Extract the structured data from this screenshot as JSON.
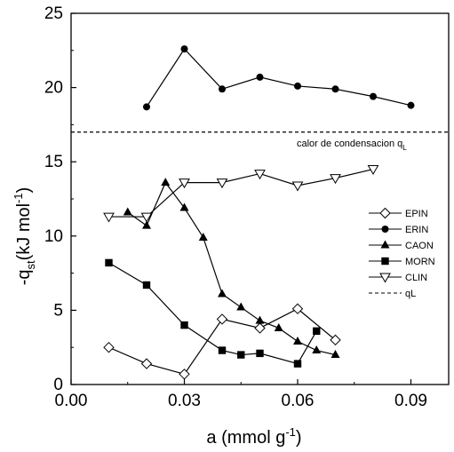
{
  "chart_data": {
    "type": "line",
    "xlabel": "a (mmol g",
    "xlabel_sup": "-1",
    "xlabel_tail": ")",
    "ylabel_prefix": "-q",
    "ylabel_sub": "st",
    "ylabel_mid": "(kJ mol",
    "ylabel_sup": "-1",
    "ylabel_tail": ")",
    "xlim": [
      0.0,
      0.1
    ],
    "ylim": [
      0,
      25
    ],
    "x_ticks": [
      0.0,
      0.03,
      0.06,
      0.09
    ],
    "x_tick_labels": [
      "0.00",
      "0.03",
      "0.06",
      "0.09"
    ],
    "y_ticks": [
      0,
      5,
      10,
      15,
      20,
      25
    ],
    "y_tick_labels": [
      "0",
      "5",
      "10",
      "15",
      "20",
      "25"
    ],
    "grid": false,
    "legend_position": "right",
    "series": [
      {
        "name": "EPIN",
        "marker": "diamond-open",
        "x": [
          0.01,
          0.02,
          0.03,
          0.04,
          0.05,
          0.06,
          0.07
        ],
        "y": [
          2.5,
          1.4,
          0.7,
          4.4,
          3.8,
          5.1,
          3.0
        ]
      },
      {
        "name": "ERIN",
        "marker": "circle-filled",
        "x": [
          0.02,
          0.03,
          0.04,
          0.05,
          0.06,
          0.07,
          0.08,
          0.09
        ],
        "y": [
          18.7,
          22.6,
          19.9,
          20.7,
          20.1,
          19.9,
          19.4,
          18.8
        ]
      },
      {
        "name": "CAON",
        "marker": "triangle-up-filled",
        "x": [
          0.015,
          0.02,
          0.025,
          0.03,
          0.035,
          0.04,
          0.045,
          0.05,
          0.055,
          0.06,
          0.065,
          0.07
        ],
        "y": [
          11.6,
          10.7,
          13.6,
          11.9,
          9.9,
          6.1,
          5.2,
          4.3,
          3.8,
          2.9,
          2.3,
          2.0
        ]
      },
      {
        "name": "MORN",
        "marker": "square-filled",
        "x": [
          0.01,
          0.02,
          0.03,
          0.04,
          0.045,
          0.05,
          0.06,
          0.065
        ],
        "y": [
          8.2,
          6.7,
          4.0,
          2.3,
          2.0,
          2.1,
          1.4,
          3.6
        ]
      },
      {
        "name": "CLIN",
        "marker": "triangle-down-open",
        "x": [
          0.01,
          0.02,
          0.03,
          0.04,
          0.05,
          0.06,
          0.07,
          0.08
        ],
        "y": [
          11.3,
          11.3,
          13.6,
          13.6,
          14.2,
          13.4,
          13.9,
          14.5
        ]
      }
    ],
    "reference_line": {
      "name": "qL",
      "y": 17.0,
      "style": "dashed"
    },
    "annotation": {
      "text": "calor de condensacion q",
      "sub": "L"
    }
  }
}
